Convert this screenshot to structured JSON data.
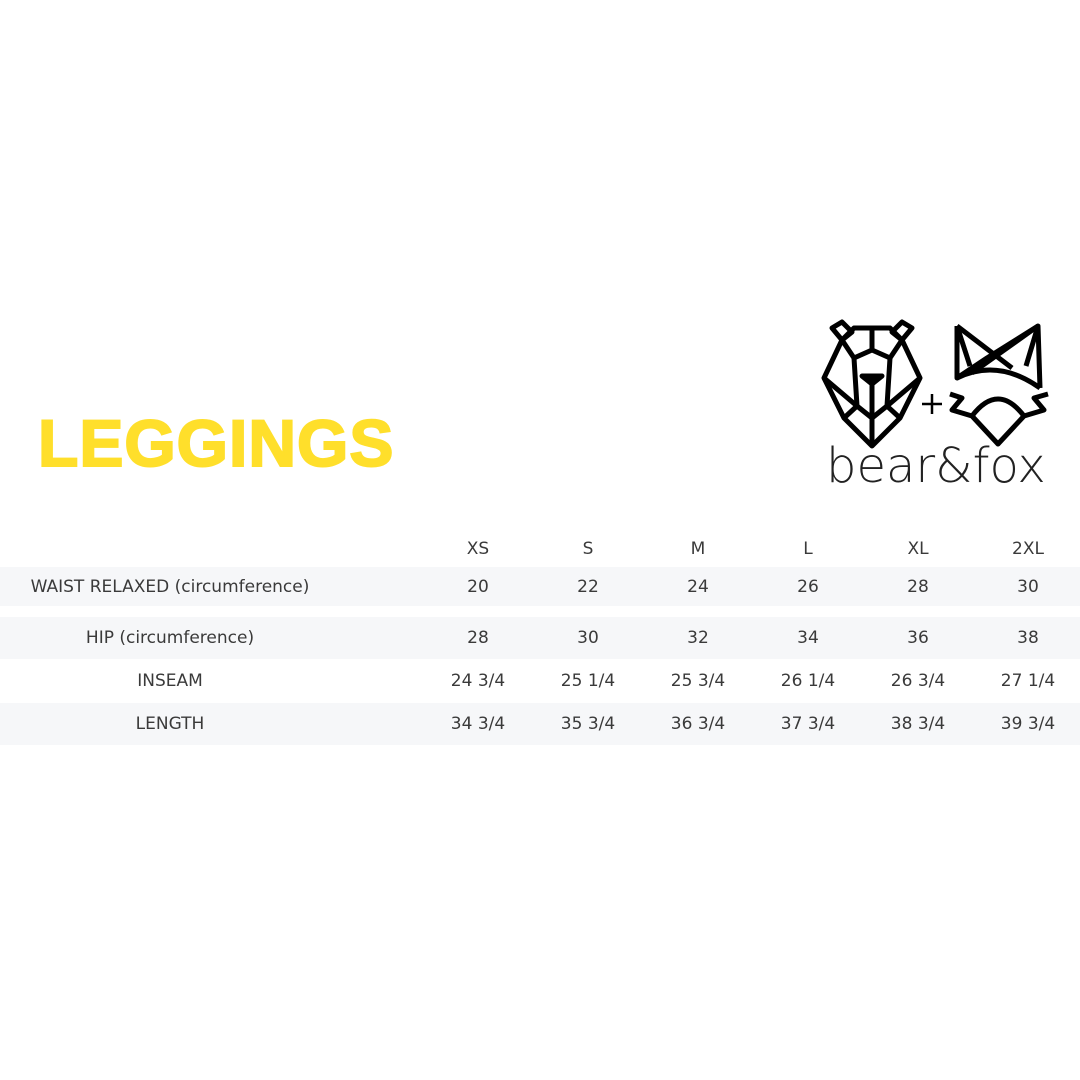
{
  "title": "LEGGINGS",
  "brand": {
    "name": "bear&fox",
    "logo_icons": [
      "bear-head-icon",
      "plus-icon",
      "fox-head-icon"
    ]
  },
  "colors": {
    "title": "#ffdf2b",
    "band": "#f6f7f9",
    "text": "#3a3a3a"
  },
  "table": {
    "columns": [
      "XS",
      "S",
      "M",
      "L",
      "XL",
      "2XL"
    ],
    "rows": [
      {
        "label": "WAIST RELAXED (circumference)",
        "values": [
          "20",
          "22",
          "24",
          "26",
          "28",
          "30"
        ]
      },
      {
        "label": "HIP (circumference)",
        "values": [
          "28",
          "30",
          "32",
          "34",
          "36",
          "38"
        ]
      },
      {
        "label": "INSEAM",
        "values": [
          "24 3/4",
          "25 1/4",
          "25 3/4",
          "26 1/4",
          "26 3/4",
          "27 1/4"
        ]
      },
      {
        "label": "LENGTH",
        "values": [
          "34 3/4",
          "35 3/4",
          "36 3/4",
          "37 3/4",
          "38 3/4",
          "39 3/4"
        ]
      }
    ]
  }
}
